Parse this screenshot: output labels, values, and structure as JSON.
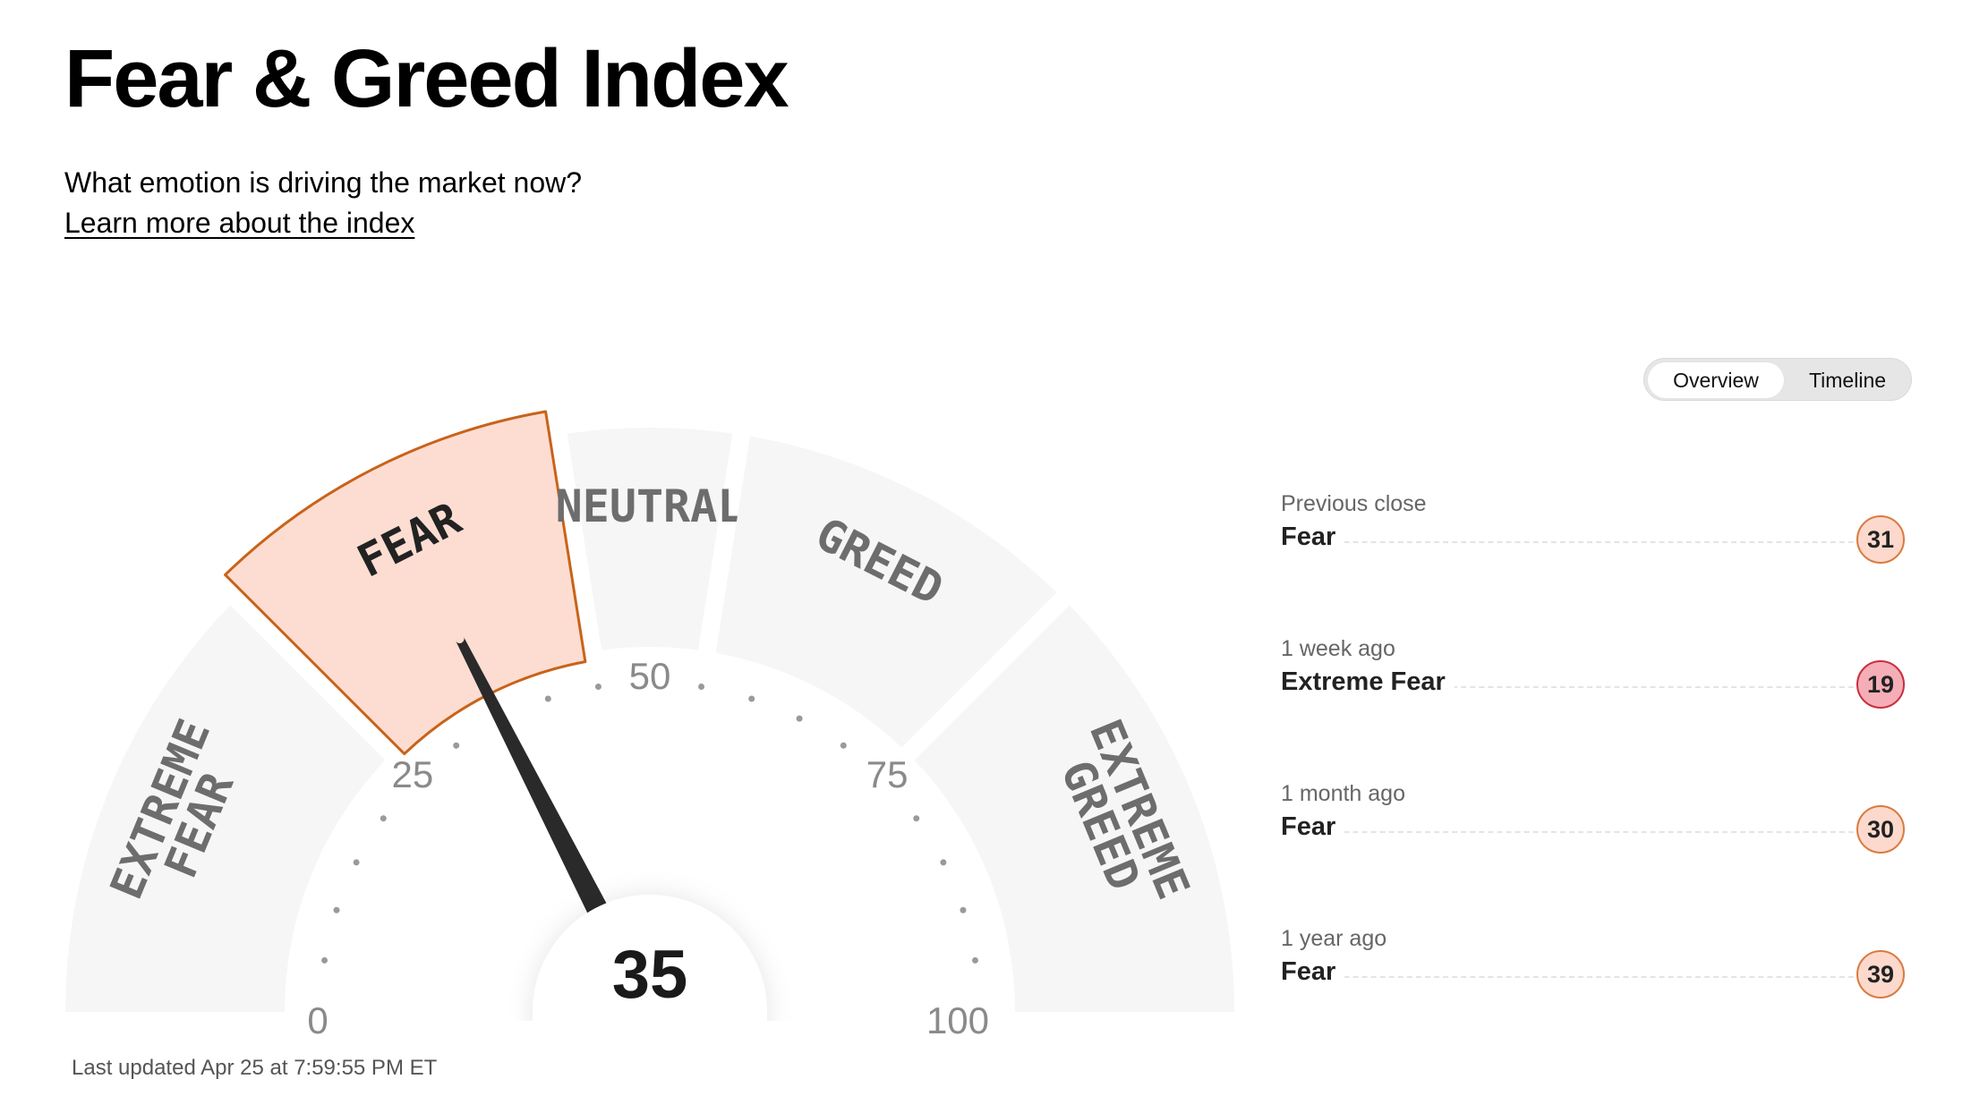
{
  "header": {
    "title": "Fear & Greed Index",
    "subtitle": "What emotion is driving the market now?",
    "learn_link": "Learn more about the index"
  },
  "toggle": {
    "overview": "Overview",
    "timeline": "Timeline"
  },
  "gauge": {
    "value": "35",
    "value_number": 35,
    "zones": [
      {
        "name": "extreme-fear",
        "lines": [
          "EXTREME",
          "FEAR"
        ],
        "from": 0,
        "to": 25
      },
      {
        "name": "fear",
        "lines": [
          "FEAR"
        ],
        "from": 25,
        "to": 45
      },
      {
        "name": "neutral",
        "lines": [
          "NEUTRAL"
        ],
        "from": 45,
        "to": 55
      },
      {
        "name": "greed",
        "lines": [
          "GREED"
        ],
        "from": 55,
        "to": 75
      },
      {
        "name": "extreme-greed",
        "lines": [
          "EXTREME",
          "GREED"
        ],
        "from": 75,
        "to": 100
      }
    ],
    "active_zone": "fear",
    "ticks": [
      "0",
      "25",
      "50",
      "75",
      "100"
    ],
    "colors": {
      "zone_bg": "#f6f6f6",
      "active_fill": "#fdddd2",
      "active_stroke": "#c8631a",
      "label": "#6d6d6d",
      "active_label": "#222222",
      "needle": "#2a2a2a"
    }
  },
  "history": [
    {
      "label": "Previous close",
      "rating": "Fear",
      "value": "31",
      "style": "fear"
    },
    {
      "label": "1 week ago",
      "rating": "Extreme Fear",
      "value": "19",
      "style": "extreme"
    },
    {
      "label": "1 month ago",
      "rating": "Fear",
      "value": "30",
      "style": "fear"
    },
    {
      "label": "1 year ago",
      "rating": "Fear",
      "value": "39",
      "style": "fear"
    }
  ],
  "last_updated": "Last updated Apr 25 at 7:59:55 PM ET"
}
